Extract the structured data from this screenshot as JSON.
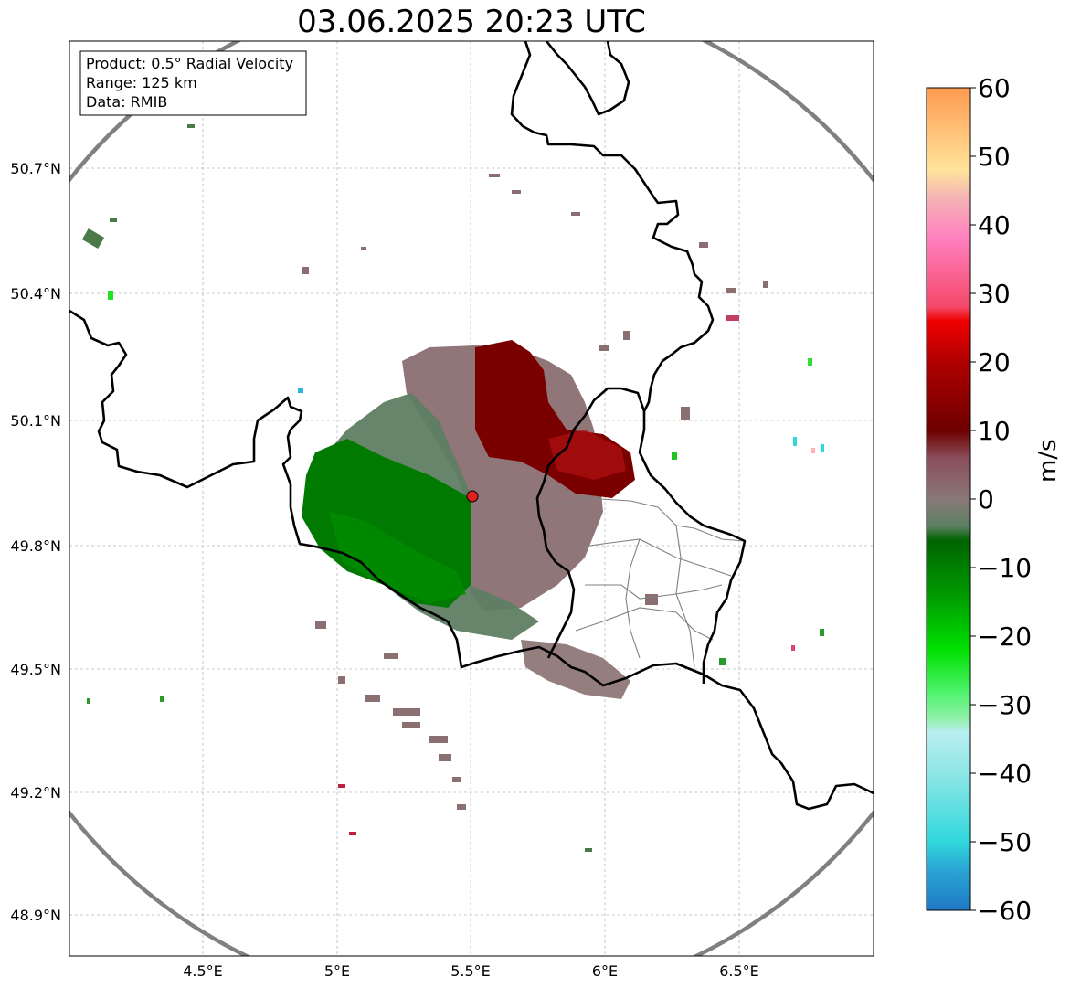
{
  "title": "03.06.2025 20:23 UTC",
  "info_box": {
    "product": "Product: 0.5° Radial Velocity",
    "range": "Range: 125 km",
    "data": "Data: RMIB"
  },
  "axes": {
    "lon_ticks": [
      "4.5°E",
      "5°E",
      "5.5°E",
      "6°E",
      "6.5°E"
    ],
    "lat_ticks": [
      "50.7°N",
      "50.4°N",
      "50.1°N",
      "49.8°N",
      "49.5°N",
      "49.2°N",
      "48.9°N"
    ]
  },
  "colorbar": {
    "label": "m/s",
    "min": -60,
    "max": 60,
    "ticks": [
      "60",
      "50",
      "40",
      "30",
      "20",
      "10",
      "0",
      "−10",
      "−20",
      "−30",
      "−40",
      "−50",
      "−60"
    ],
    "stops": [
      {
        "v": -60,
        "c": "#1f78c4"
      },
      {
        "v": -54,
        "c": "#2aa6d4"
      },
      {
        "v": -50,
        "c": "#30d8dc"
      },
      {
        "v": -40,
        "c": "#8fe6e6"
      },
      {
        "v": -34,
        "c": "#b8eef0"
      },
      {
        "v": -32,
        "c": "#8ff0a8"
      },
      {
        "v": -28,
        "c": "#4cf26a"
      },
      {
        "v": -22,
        "c": "#00e000"
      },
      {
        "v": -14,
        "c": "#009a00"
      },
      {
        "v": -6,
        "c": "#006400"
      },
      {
        "v": -4,
        "c": "#5a8060"
      },
      {
        "v": 0,
        "c": "#8a7878"
      },
      {
        "v": 6,
        "c": "#8a4e5a"
      },
      {
        "v": 10,
        "c": "#6e0000"
      },
      {
        "v": 20,
        "c": "#b00000"
      },
      {
        "v": 26,
        "c": "#f00000"
      },
      {
        "v": 28,
        "c": "#f44868"
      },
      {
        "v": 38,
        "c": "#ff80c0"
      },
      {
        "v": 44,
        "c": "#f4b4b4"
      },
      {
        "v": 48,
        "c": "#ffe49a"
      },
      {
        "v": 60,
        "c": "#ff9a50"
      }
    ]
  },
  "radar_site": {
    "lon": 5.505,
    "lat": 49.914,
    "color": "#e02020"
  },
  "radar_range_km": 125,
  "echo_regions": [
    {
      "name": "outbound-core",
      "velocity": 14,
      "color": "#7a0000"
    },
    {
      "name": "near-zero-area",
      "velocity": 3,
      "color": "#8a6e72"
    },
    {
      "name": "inbound-core",
      "velocity": -12,
      "color": "#007a00"
    },
    {
      "name": "weak-inbound",
      "velocity": -3,
      "color": "#5e7e62"
    }
  ],
  "colors": {
    "border": "#000000",
    "range_ring": "#808080",
    "admin_lines": "#808080",
    "grid": "#b8b8b8"
  }
}
